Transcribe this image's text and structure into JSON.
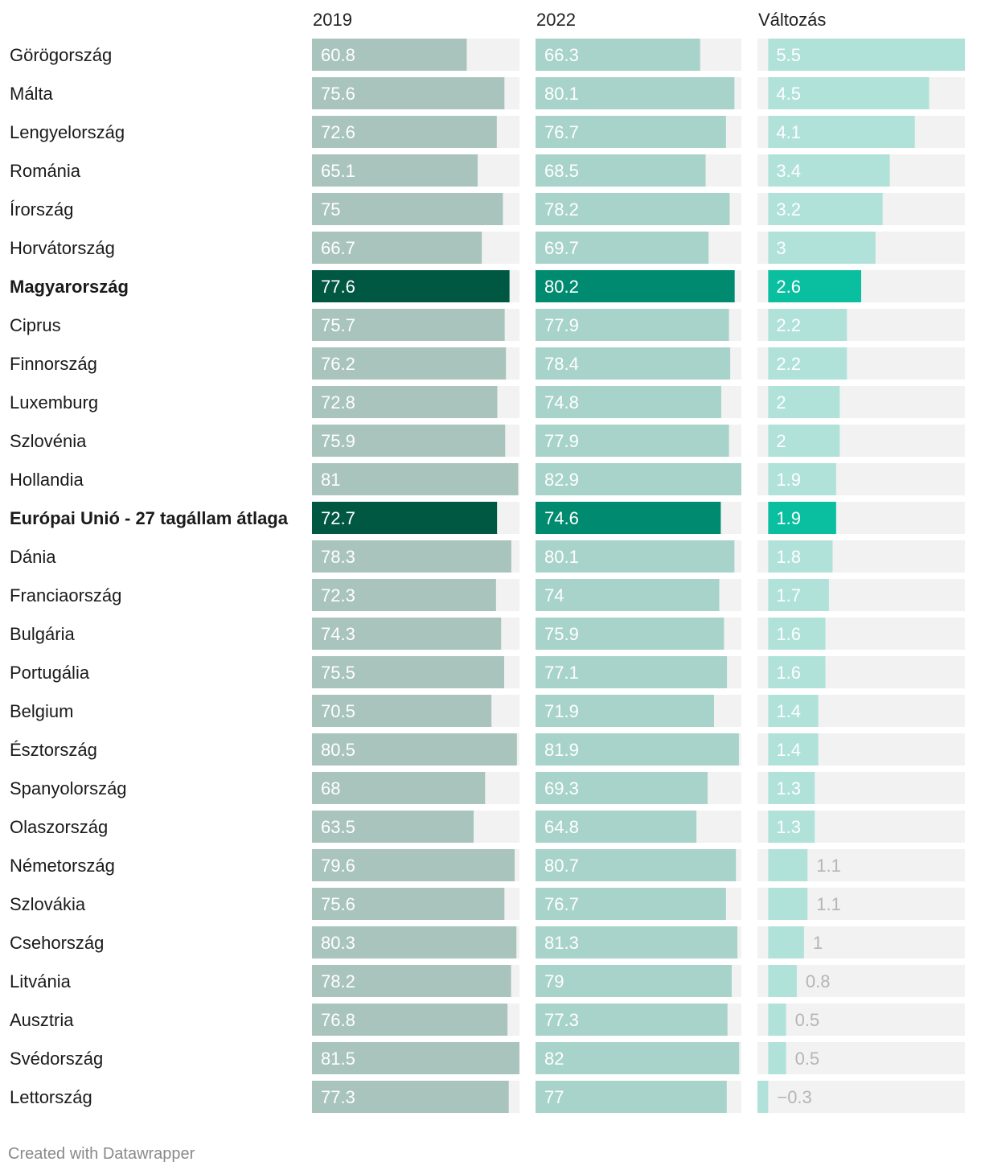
{
  "chart_data": {
    "type": "table",
    "columns": [
      "2019",
      "2022",
      "Változás"
    ],
    "rows": [
      {
        "label": "Görögország",
        "v2019": 60.8,
        "v2022": 66.3,
        "change": 5.5,
        "highlight": false
      },
      {
        "label": "Málta",
        "v2019": 75.6,
        "v2022": 80.1,
        "change": 4.5,
        "highlight": false
      },
      {
        "label": "Lengyelország",
        "v2019": 72.6,
        "v2022": 76.7,
        "change": 4.1,
        "highlight": false
      },
      {
        "label": "Románia",
        "v2019": 65.1,
        "v2022": 68.5,
        "change": 3.4,
        "highlight": false
      },
      {
        "label": "Írország",
        "v2019": 75,
        "v2022": 78.2,
        "change": 3.2,
        "highlight": false
      },
      {
        "label": "Horvátország",
        "v2019": 66.7,
        "v2022": 69.7,
        "change": 3,
        "highlight": false
      },
      {
        "label": "Magyarország",
        "v2019": 77.6,
        "v2022": 80.2,
        "change": 2.6,
        "highlight": true
      },
      {
        "label": "Ciprus",
        "v2019": 75.7,
        "v2022": 77.9,
        "change": 2.2,
        "highlight": false
      },
      {
        "label": "Finnország",
        "v2019": 76.2,
        "v2022": 78.4,
        "change": 2.2,
        "highlight": false
      },
      {
        "label": "Luxemburg",
        "v2019": 72.8,
        "v2022": 74.8,
        "change": 2,
        "highlight": false
      },
      {
        "label": "Szlovénia",
        "v2019": 75.9,
        "v2022": 77.9,
        "change": 2,
        "highlight": false
      },
      {
        "label": "Hollandia",
        "v2019": 81,
        "v2022": 82.9,
        "change": 1.9,
        "highlight": false
      },
      {
        "label": "Európai Unió - 27 tagállam átlaga",
        "v2019": 72.7,
        "v2022": 74.6,
        "change": 1.9,
        "highlight": true
      },
      {
        "label": "Dánia",
        "v2019": 78.3,
        "v2022": 80.1,
        "change": 1.8,
        "highlight": false
      },
      {
        "label": "Franciaország",
        "v2019": 72.3,
        "v2022": 74,
        "change": 1.7,
        "highlight": false
      },
      {
        "label": "Bulgária",
        "v2019": 74.3,
        "v2022": 75.9,
        "change": 1.6,
        "highlight": false
      },
      {
        "label": "Portugália",
        "v2019": 75.5,
        "v2022": 77.1,
        "change": 1.6,
        "highlight": false
      },
      {
        "label": "Belgium",
        "v2019": 70.5,
        "v2022": 71.9,
        "change": 1.4,
        "highlight": false
      },
      {
        "label": "Észtország",
        "v2019": 80.5,
        "v2022": 81.9,
        "change": 1.4,
        "highlight": false
      },
      {
        "label": "Spanyolország",
        "v2019": 68,
        "v2022": 69.3,
        "change": 1.3,
        "highlight": false
      },
      {
        "label": "Olaszország",
        "v2019": 63.5,
        "v2022": 64.8,
        "change": 1.3,
        "highlight": false
      },
      {
        "label": "Németország",
        "v2019": 79.6,
        "v2022": 80.7,
        "change": 1.1,
        "highlight": false
      },
      {
        "label": "Szlovákia",
        "v2019": 75.6,
        "v2022": 76.7,
        "change": 1.1,
        "highlight": false
      },
      {
        "label": "Csehország",
        "v2019": 80.3,
        "v2022": 81.3,
        "change": 1,
        "highlight": false
      },
      {
        "label": "Litvánia",
        "v2019": 78.2,
        "v2022": 79,
        "change": 0.8,
        "highlight": false
      },
      {
        "label": "Ausztria",
        "v2019": 76.8,
        "v2022": 77.3,
        "change": 0.5,
        "highlight": false
      },
      {
        "label": "Svédország",
        "v2019": 81.5,
        "v2022": 82,
        "change": 0.5,
        "highlight": false
      },
      {
        "label": "Lettország",
        "v2019": 77.3,
        "v2022": 77,
        "change": -0.3,
        "highlight": false
      }
    ],
    "scales": {
      "v2019": [
        0,
        81.5
      ],
      "v2022": [
        0,
        82.9
      ],
      "change": [
        -0.3,
        5.5
      ]
    },
    "colors": {
      "v2019": "#a9c4bc",
      "v2019_highlight": "#005742",
      "v2022": "#a8d3ca",
      "v2022_highlight": "#008b70",
      "change": "#b0e2da",
      "change_highlight": "#0abfa0",
      "track": "#f2f2f2",
      "label_inside": "#ffffff",
      "label_outside": "#b5b5b5"
    }
  },
  "footer": "Created with Datawrapper"
}
